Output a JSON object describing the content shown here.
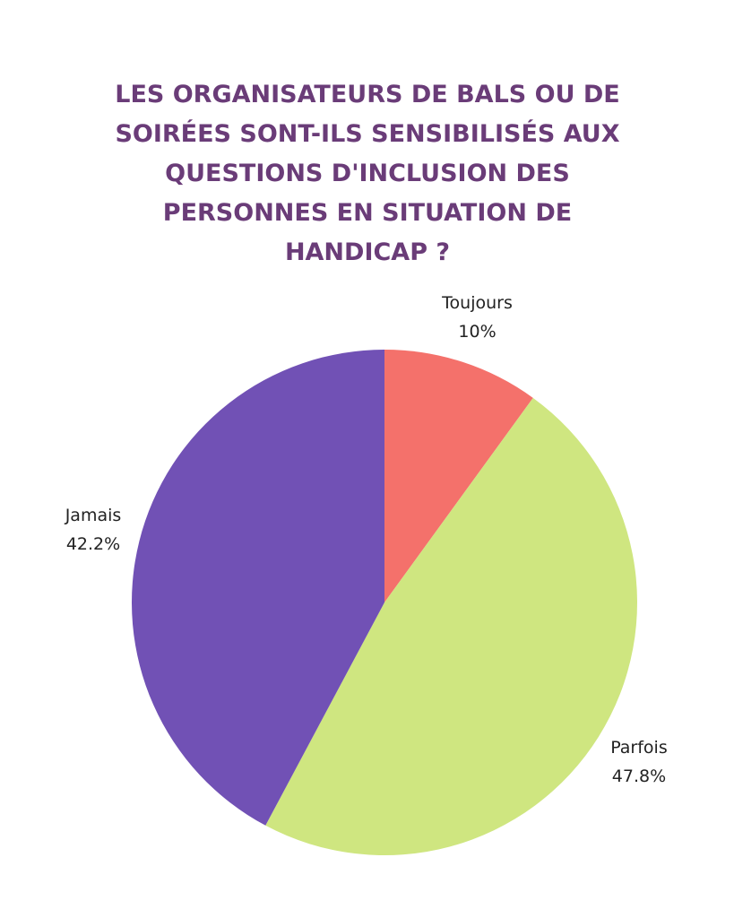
{
  "chart_data": {
    "type": "pie",
    "title": "LES ORGANISATEURS DE BALS OU DE SOIRÉES SONT-ILS SENSIBILISÉS AUX QUESTIONS D'INCLUSION DES PERSONNES EN SITUATION DE HANDICAP ?",
    "categories": [
      "Toujours",
      "Parfois",
      "Jamais"
    ],
    "values": [
      10,
      47.8,
      42.2
    ],
    "value_labels": [
      "10%",
      "47.8%",
      "42.2%"
    ],
    "colors": [
      "#f4716b",
      "#cfe680",
      "#7151b5"
    ]
  }
}
